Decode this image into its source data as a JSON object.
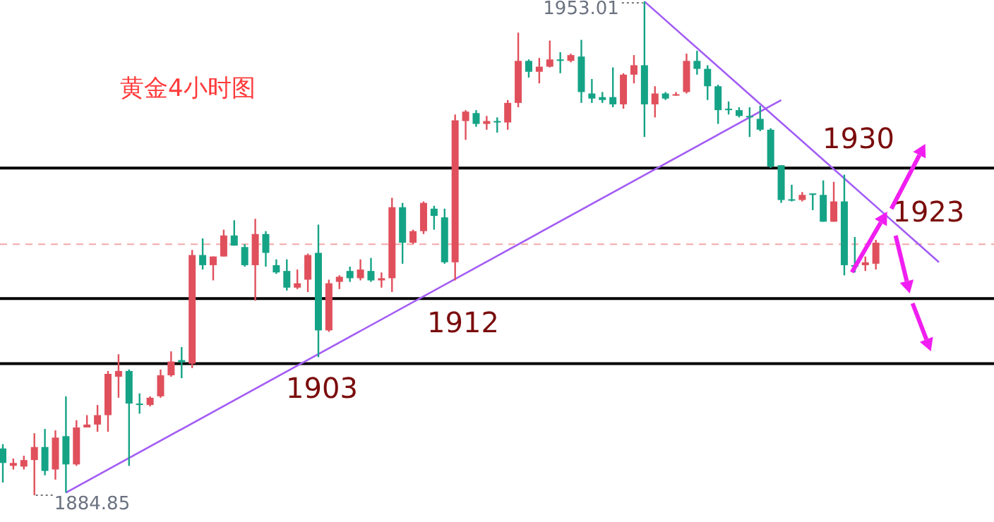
{
  "chart_data": {
    "type": "candlestick",
    "title": "黄金4小时图",
    "categories": [
      null,
      null,
      null,
      null,
      null,
      null,
      null,
      null,
      null,
      null,
      null,
      null,
      null,
      null,
      null,
      null,
      null,
      null,
      null,
      null,
      null,
      null,
      null,
      null,
      null,
      null,
      null,
      null,
      null,
      null,
      null,
      null,
      null,
      null,
      null,
      null,
      null,
      null,
      null,
      null,
      null,
      null,
      null,
      null,
      null,
      null,
      null,
      null,
      null,
      null,
      null,
      null,
      null,
      null,
      null,
      null,
      null,
      null,
      null,
      null,
      null,
      null,
      null,
      null,
      null,
      null,
      null,
      null,
      null,
      null,
      null,
      null,
      null,
      null,
      null,
      null,
      null,
      null,
      null,
      null,
      null,
      null,
      null,
      null,
      null,
      null,
      null,
      null,
      null,
      null,
      null,
      null,
      null,
      null,
      null
    ],
    "ohlc": [
      [
        1891.3,
        1891.9,
        1886.6,
        1889.3
      ],
      [
        1888.9,
        1889.9,
        1888.4,
        1889.3
      ],
      [
        1888.8,
        1890.3,
        1888.4,
        1889.7
      ],
      [
        1889.7,
        1893.4,
        1884.85,
        1891.5
      ],
      [
        1891.5,
        1894.0,
        1887.6,
        1888.2
      ],
      [
        1888.4,
        1893.8,
        1887.0,
        1892.8
      ],
      [
        1893.0,
        1898.5,
        1885.2,
        1889.1
      ],
      [
        1889.1,
        1895.2,
        1888.9,
        1894.2
      ],
      [
        1894.2,
        1895.9,
        1894.2,
        1894.6
      ],
      [
        1894.6,
        1897.3,
        1893.6,
        1895.9
      ],
      [
        1895.9,
        1902.0,
        1893.6,
        1901.6
      ],
      [
        1901.2,
        1904.3,
        1898.3,
        1902.0
      ],
      [
        1902.0,
        1902.2,
        1888.9,
        1897.5
      ],
      [
        1897.5,
        1898.9,
        1896.1,
        1897.3
      ],
      [
        1897.3,
        1898.5,
        1897.1,
        1898.3
      ],
      [
        1898.5,
        1902.2,
        1898.3,
        1901.4
      ],
      [
        1901.4,
        1904.7,
        1901.2,
        1903.3
      ],
      [
        1903.5,
        1905.3,
        1901.0,
        1903.2
      ],
      [
        1903.0,
        1918.7,
        1902.4,
        1918.0
      ],
      [
        1918.0,
        1920.3,
        1916.0,
        1916.6
      ],
      [
        1916.6,
        1917.8,
        1914.5,
        1917.8
      ],
      [
        1917.8,
        1921.5,
        1917.8,
        1920.7
      ],
      [
        1920.7,
        1922.8,
        1919.3,
        1919.3
      ],
      [
        1919.1,
        1919.5,
        1916.4,
        1916.6
      ],
      [
        1916.6,
        1923.0,
        1911.7,
        1920.9
      ],
      [
        1920.9,
        1921.3,
        1916.4,
        1918.3
      ],
      [
        1916.6,
        1917.4,
        1915.4,
        1915.6
      ],
      [
        1915.8,
        1917.4,
        1913.1,
        1913.5
      ],
      [
        1913.5,
        1916.0,
        1913.3,
        1914.1
      ],
      [
        1914.6,
        1918.2,
        1912.9,
        1918.0
      ],
      [
        1918.3,
        1922.2,
        1903.9,
        1907.6
      ],
      [
        1907.6,
        1914.6,
        1907.4,
        1914.1
      ],
      [
        1914.3,
        1915.2,
        1913.3,
        1915.0
      ],
      [
        1915.8,
        1916.4,
        1914.3,
        1914.8
      ],
      [
        1914.8,
        1917.4,
        1914.5,
        1916.0
      ],
      [
        1915.8,
        1917.6,
        1914.3,
        1914.5
      ],
      [
        1914.5,
        1915.6,
        1913.5,
        1914.8
      ],
      [
        1914.8,
        1925.9,
        1912.9,
        1924.6
      ],
      [
        1924.6,
        1925.2,
        1916.8,
        1919.7
      ],
      [
        1919.7,
        1921.5,
        1919.5,
        1921.3
      ],
      [
        1921.3,
        1925.4,
        1920.9,
        1925.2
      ],
      [
        1924.4,
        1924.8,
        1921.5,
        1923.4
      ],
      [
        1923.2,
        1924.4,
        1916.8,
        1917.0
      ],
      [
        1917.0,
        1937.4,
        1914.5,
        1936.6
      ],
      [
        1936.5,
        1938.0,
        1933.9,
        1937.8
      ],
      [
        1937.6,
        1938.0,
        1935.7,
        1936.1
      ],
      [
        1936.1,
        1937.2,
        1935.3,
        1936.5
      ],
      [
        1936.5,
        1937.0,
        1934.9,
        1936.3
      ],
      [
        1936.3,
        1939.4,
        1935.3,
        1939.0
      ],
      [
        1939.0,
        1948.7,
        1938.4,
        1944.8
      ],
      [
        1944.8,
        1945.0,
        1942.5,
        1943.3
      ],
      [
        1943.3,
        1945.2,
        1941.7,
        1944.0
      ],
      [
        1944.0,
        1947.6,
        1943.9,
        1945.0
      ],
      [
        1945.0,
        1946.0,
        1943.1,
        1944.8
      ],
      [
        1944.8,
        1945.8,
        1944.6,
        1945.6
      ],
      [
        1945.4,
        1947.7,
        1939.0,
        1940.5
      ],
      [
        1940.3,
        1942.3,
        1939.0,
        1939.6
      ],
      [
        1939.8,
        1940.5,
        1939.0,
        1939.4
      ],
      [
        1939.8,
        1943.9,
        1938.4,
        1938.8
      ],
      [
        1938.8,
        1943.1,
        1938.2,
        1942.9
      ],
      [
        1942.9,
        1945.6,
        1941.7,
        1944.2
      ],
      [
        1944.2,
        1953.01,
        1934.3,
        1938.8
      ],
      [
        1938.8,
        1941.3,
        1937.0,
        1940.3
      ],
      [
        1940.3,
        1940.5,
        1939.4,
        1939.6
      ],
      [
        1940.0,
        1940.5,
        1940.0,
        1940.2
      ],
      [
        1940.5,
        1945.8,
        1940.3,
        1944.8
      ],
      [
        1944.8,
        1946.2,
        1942.9,
        1943.7
      ],
      [
        1943.7,
        1944.2,
        1939.4,
        1941.3
      ],
      [
        1941.3,
        1941.5,
        1936.1,
        1938.0
      ],
      [
        1938.2,
        1939.2,
        1937.4,
        1938.0
      ],
      [
        1938.0,
        1938.4,
        1937.0,
        1937.2
      ],
      [
        1937.2,
        1938.4,
        1934.3,
        1937.0
      ],
      [
        1936.8,
        1938.6,
        1935.1,
        1935.3
      ],
      [
        1935.3,
        1935.5,
        1930.0,
        1930.2
      ],
      [
        1930.4,
        1930.4,
        1925.2,
        1925.6
      ],
      [
        1925.7,
        1927.7,
        1925.4,
        1925.6
      ],
      [
        1925.6,
        1926.7,
        1925.4,
        1926.3
      ],
      [
        1926.5,
        1926.5,
        1924.2,
        1926.3
      ],
      [
        1926.3,
        1928.3,
        1922.6,
        1922.6
      ],
      [
        1922.6,
        1928.1,
        1922.6,
        1925.4
      ],
      [
        1925.4,
        1929.1,
        1915.2,
        1916.6
      ],
      [
        1916.6,
        1920.5,
        1915.6,
        1916.4
      ],
      [
        1916.6,
        1917.8,
        1915.8,
        1917.0
      ],
      [
        1916.8,
        1920.1,
        1916.0,
        1919.7
      ],
      null,
      null,
      null,
      null,
      null,
      null,
      null,
      null,
      null,
      null,
      null
    ],
    "series": [
      {
        "type": "line",
        "color": "#a35cf5",
        "values": [
          null,
          null,
          null,
          null,
          null,
          null,
          1885.2,
          null,
          null,
          null,
          null,
          null,
          null,
          null,
          null,
          null,
          null,
          null,
          null,
          null,
          null,
          null,
          null,
          null,
          null,
          null,
          null,
          null,
          null,
          null,
          null,
          null,
          null,
          null,
          null,
          null,
          null,
          null,
          null,
          null,
          null,
          null,
          null,
          null,
          null,
          null,
          null,
          null,
          null,
          null,
          null,
          null,
          null,
          null,
          null,
          null,
          null,
          null,
          null,
          null,
          null,
          null,
          null,
          null,
          null,
          null,
          null,
          null,
          null,
          null,
          null,
          null,
          null,
          null,
          1939.4,
          null,
          null,
          null,
          null,
          null,
          null,
          null,
          null,
          null,
          null,
          null,
          null,
          null,
          null,
          null,
          null,
          null,
          null,
          null,
          null
        ]
      },
      {
        "type": "line",
        "color": "#a35cf5",
        "values": [
          null,
          null,
          null,
          null,
          null,
          null,
          null,
          null,
          null,
          null,
          null,
          null,
          null,
          null,
          null,
          null,
          null,
          null,
          null,
          null,
          null,
          null,
          null,
          null,
          null,
          null,
          null,
          null,
          null,
          null,
          null,
          null,
          null,
          null,
          null,
          null,
          null,
          null,
          null,
          null,
          null,
          null,
          null,
          null,
          null,
          null,
          null,
          null,
          null,
          null,
          null,
          null,
          null,
          null,
          null,
          null,
          null,
          null,
          null,
          null,
          null,
          1953.0,
          null,
          null,
          null,
          null,
          null,
          null,
          null,
          null,
          null,
          null,
          null,
          null,
          null,
          null,
          null,
          null,
          null,
          null,
          null,
          null,
          null,
          null,
          null,
          null,
          null,
          null,
          null,
          1917.0,
          null,
          null,
          null,
          null,
          null
        ]
      }
    ],
    "ref_lines": [
      {
        "axis": "y",
        "value": 1919.5,
        "color": "#f4a9a9",
        "line_style": "dashed"
      },
      {
        "axis": "y",
        "value": 1930,
        "label": "1930",
        "color": "#000000",
        "line_style": "solid"
      },
      {
        "axis": "y",
        "value": 1912,
        "label": "1912",
        "color": "#000000",
        "line_style": "solid"
      },
      {
        "axis": "y",
        "value": 1903,
        "label": "1903",
        "color": "#000000",
        "line_style": "solid"
      }
    ],
    "annotations": [
      "1953.01",
      "1884.85",
      "1923"
    ]
  }
}
